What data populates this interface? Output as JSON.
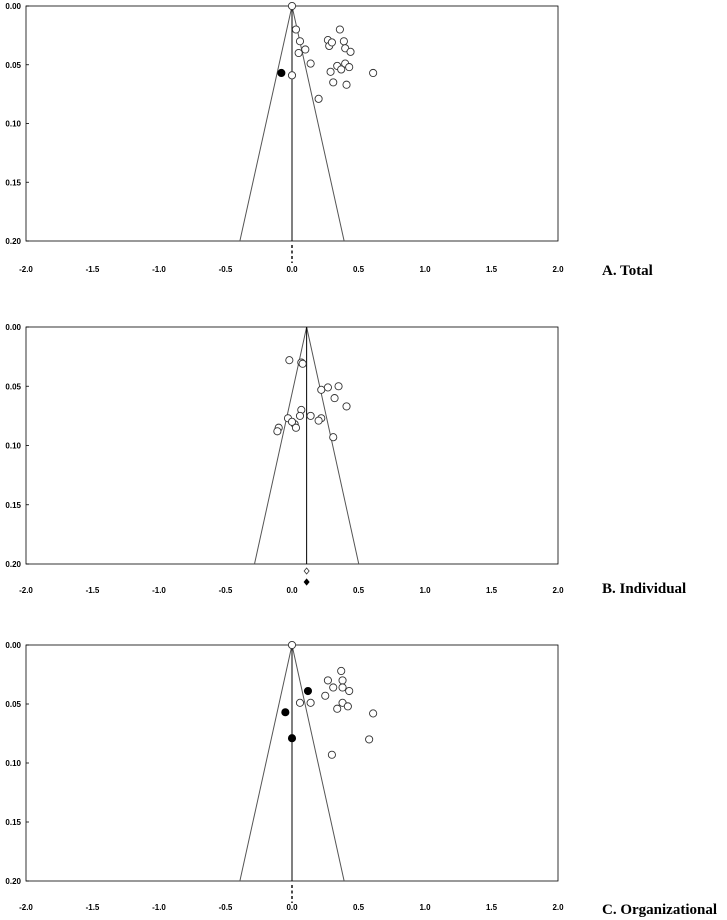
{
  "chart_data": [
    {
      "type": "scatter",
      "subtype": "funnel",
      "title": "A. Total",
      "xlim": [
        -2.0,
        2.0
      ],
      "ylim": [
        0.0,
        0.2
      ],
      "y_inverted": true,
      "xticks": [
        "-2.0",
        "-1.5",
        "-1.0",
        "-0.5",
        "0.0",
        "0.5",
        "1.0",
        "1.5",
        "2.0"
      ],
      "yticks": [
        "0.00",
        "0.05",
        "0.10",
        "0.15",
        "0.20"
      ],
      "center": 0.0,
      "funnel_half_width_at_max": 0.392,
      "pooled_estimate": 0.0,
      "pooled_marker": "dashed",
      "observed": [
        [
          0.0,
          0.0
        ],
        [
          0.03,
          0.02
        ],
        [
          0.06,
          0.03
        ],
        [
          0.05,
          0.04
        ],
        [
          0.1,
          0.037
        ],
        [
          0.14,
          0.049
        ],
        [
          0.0,
          0.059
        ],
        [
          0.2,
          0.079
        ],
        [
          0.27,
          0.029
        ],
        [
          0.28,
          0.034
        ],
        [
          0.3,
          0.031
        ],
        [
          0.36,
          0.02
        ],
        [
          0.39,
          0.03
        ],
        [
          0.4,
          0.036
        ],
        [
          0.44,
          0.039
        ],
        [
          0.29,
          0.056
        ],
        [
          0.34,
          0.051
        ],
        [
          0.37,
          0.054
        ],
        [
          0.4,
          0.049
        ],
        [
          0.43,
          0.052
        ],
        [
          0.31,
          0.065
        ],
        [
          0.41,
          0.067
        ],
        [
          0.61,
          0.057
        ]
      ],
      "imputed": [
        [
          -0.08,
          0.057
        ]
      ],
      "grid": false
    },
    {
      "type": "scatter",
      "subtype": "funnel",
      "title": "B. Individual",
      "xlim": [
        -2.0,
        2.0
      ],
      "ylim": [
        0.0,
        0.2
      ],
      "y_inverted": true,
      "xticks": [
        "-2.0",
        "-1.5",
        "-1.0",
        "-0.5",
        "0.0",
        "0.5",
        "1.0",
        "1.5",
        "2.0"
      ],
      "yticks": [
        "0.00",
        "0.05",
        "0.10",
        "0.15",
        "0.20"
      ],
      "center": 0.11,
      "funnel_half_width_at_max": 0.392,
      "pooled_estimate": 0.11,
      "pooled_adjusted": 0.11,
      "observed": [
        [
          -0.02,
          0.028
        ],
        [
          0.07,
          0.03
        ],
        [
          0.08,
          0.031
        ],
        [
          0.22,
          0.053
        ],
        [
          0.27,
          0.051
        ],
        [
          0.35,
          0.05
        ],
        [
          0.32,
          0.06
        ],
        [
          0.41,
          0.067
        ],
        [
          0.07,
          0.07
        ],
        [
          0.06,
          0.075
        ],
        [
          0.14,
          0.075
        ],
        [
          0.22,
          0.077
        ],
        [
          0.2,
          0.079
        ],
        [
          -0.03,
          0.077
        ],
        [
          0.02,
          0.082
        ],
        [
          0.0,
          0.08
        ],
        [
          -0.1,
          0.085
        ],
        [
          -0.11,
          0.088
        ],
        [
          0.03,
          0.085
        ],
        [
          0.31,
          0.093
        ]
      ],
      "imputed": [],
      "grid": false
    },
    {
      "type": "scatter",
      "subtype": "funnel",
      "title": "C. Organizational",
      "xlim": [
        -2.0,
        2.0
      ],
      "ylim": [
        0.0,
        0.2
      ],
      "y_inverted": true,
      "xticks": [
        "-2.0",
        "-1.5",
        "-1.0",
        "-0.5",
        "0.0",
        "0.5",
        "1.0",
        "1.5",
        "2.0"
      ],
      "yticks": [
        "0.00",
        "0.05",
        "0.10",
        "0.15",
        "0.20"
      ],
      "center": 0.0,
      "funnel_half_width_at_max": 0.392,
      "pooled_estimate": 0.0,
      "pooled_marker": "dashed",
      "observed": [
        [
          0.0,
          0.0
        ],
        [
          0.27,
          0.03
        ],
        [
          0.31,
          0.036
        ],
        [
          0.25,
          0.043
        ],
        [
          0.06,
          0.049
        ],
        [
          0.14,
          0.049
        ],
        [
          0.37,
          0.022
        ],
        [
          0.38,
          0.03
        ],
        [
          0.38,
          0.036
        ],
        [
          0.43,
          0.039
        ],
        [
          0.34,
          0.054
        ],
        [
          0.38,
          0.049
        ],
        [
          0.42,
          0.052
        ],
        [
          0.61,
          0.058
        ],
        [
          0.58,
          0.08
        ],
        [
          0.3,
          0.093
        ]
      ],
      "imputed": [
        [
          0.12,
          0.039
        ],
        [
          -0.05,
          0.057
        ],
        [
          0.0,
          0.079
        ]
      ],
      "grid": false
    }
  ]
}
